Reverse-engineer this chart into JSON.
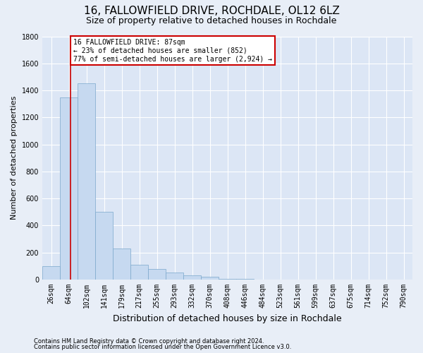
{
  "title": "16, FALLOWFIELD DRIVE, ROCHDALE, OL12 6LZ",
  "subtitle": "Size of property relative to detached houses in Rochdale",
  "xlabel": "Distribution of detached houses by size in Rochdale",
  "ylabel": "Number of detached properties",
  "footnote1": "Contains HM Land Registry data © Crown copyright and database right 2024.",
  "footnote2": "Contains public sector information licensed under the Open Government Licence v3.0.",
  "bar_labels": [
    "26sqm",
    "64sqm",
    "102sqm",
    "141sqm",
    "179sqm",
    "217sqm",
    "255sqm",
    "293sqm",
    "332sqm",
    "370sqm",
    "408sqm",
    "446sqm",
    "484sqm",
    "523sqm",
    "561sqm",
    "599sqm",
    "637sqm",
    "675sqm",
    "714sqm",
    "752sqm",
    "790sqm"
  ],
  "bar_heights": [
    100,
    1350,
    1450,
    500,
    230,
    110,
    80,
    50,
    30,
    20,
    5,
    5,
    0,
    0,
    0,
    0,
    0,
    0,
    0,
    0,
    0
  ],
  "bar_color": "#c6d9f0",
  "bar_edge_color": "#7ba7cc",
  "annotation_text": "16 FALLOWFIELD DRIVE: 87sqm\n← 23% of detached houses are smaller (852)\n77% of semi-detached houses are larger (2,924) →",
  "annotation_box_color": "#ffffff",
  "annotation_border_color": "#cc0000",
  "line_color": "#cc0000",
  "ylim": [
    0,
    1800
  ],
  "yticks": [
    0,
    200,
    400,
    600,
    800,
    1000,
    1200,
    1400,
    1600,
    1800
  ],
  "background_color": "#e8eef7",
  "plot_bg_color": "#dce6f5",
  "grid_color": "#ffffff",
  "title_fontsize": 11,
  "subtitle_fontsize": 9,
  "ylabel_fontsize": 8,
  "xlabel_fontsize": 9,
  "tick_fontsize": 7,
  "annot_fontsize": 7,
  "footnote_fontsize": 6
}
